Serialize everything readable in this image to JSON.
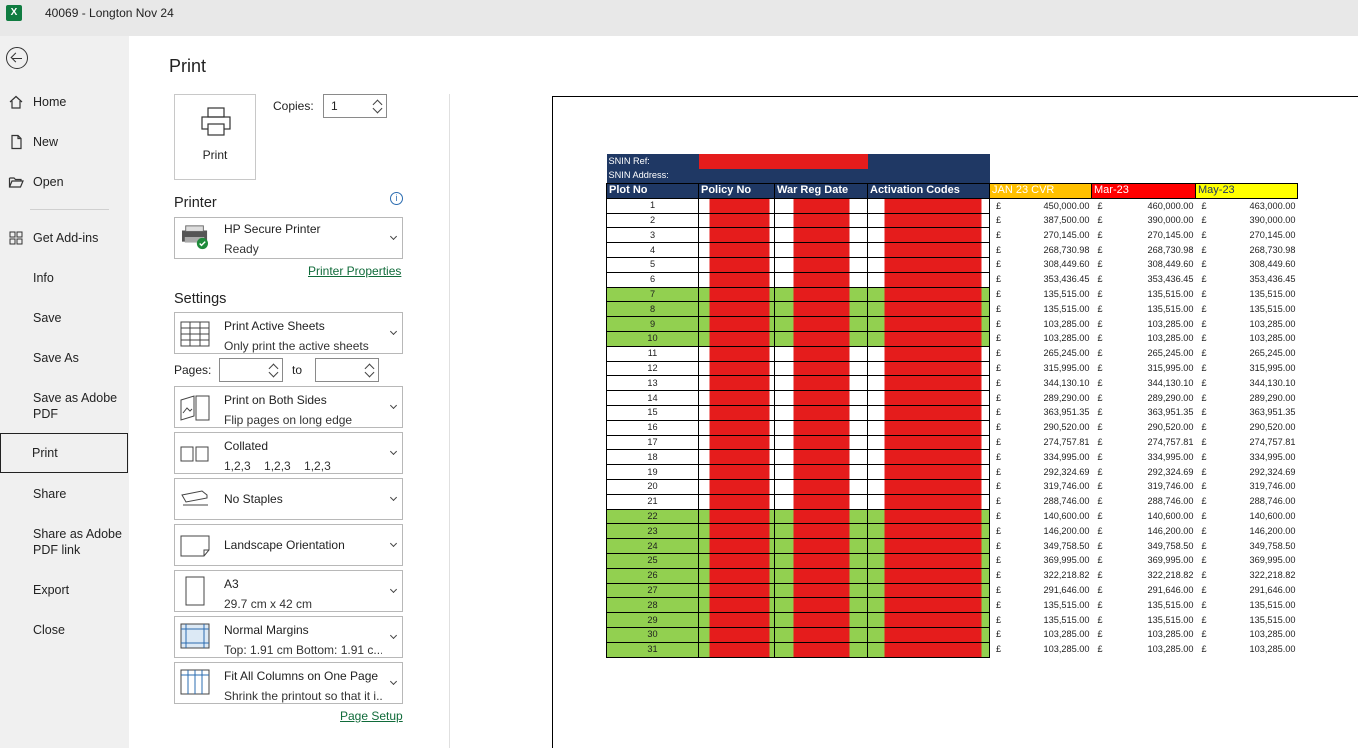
{
  "window": {
    "title": "40069 - Longton Nov 24",
    "app_icon": "excel-icon"
  },
  "nav": {
    "items": [
      {
        "label": "Home",
        "icon": "home-icon"
      },
      {
        "label": "New",
        "icon": "new-file-icon"
      },
      {
        "label": "Open",
        "icon": "open-folder-icon"
      },
      {
        "label": "Get Add-ins",
        "icon": "add-ins-icon"
      },
      {
        "label": "Info"
      },
      {
        "label": "Save"
      },
      {
        "label": "Save As"
      },
      {
        "label": "Save as Adobe PDF"
      },
      {
        "label": "Print",
        "selected": true
      },
      {
        "label": "Share"
      },
      {
        "label": "Share as Adobe PDF link"
      },
      {
        "label": "Export"
      },
      {
        "label": "Close"
      }
    ]
  },
  "print": {
    "heading": "Print",
    "button_label": "Print",
    "copies_label": "Copies:",
    "copies_value": "1",
    "printer_heading": "Printer",
    "printer_name": "HP Secure Printer",
    "printer_status": "Ready",
    "printer_properties": "Printer Properties",
    "settings_heading": "Settings",
    "settings": [
      {
        "title": "Print Active Sheets",
        "subtitle": "Only print the active sheets"
      },
      {
        "title": "Print on Both Sides",
        "subtitle": "Flip pages on long edge"
      },
      {
        "title": "Collated",
        "subtitle": "1,2,3    1,2,3    1,2,3"
      },
      {
        "title": "No Staples"
      },
      {
        "title": "Landscape Orientation"
      },
      {
        "title": "A3",
        "subtitle": "29.7 cm x 42 cm"
      },
      {
        "title": "Normal Margins",
        "subtitle": "Top: 1.91 cm Bottom: 1.91 c..."
      },
      {
        "title": "Fit All Columns on One Page",
        "subtitle": "Shrink the printout so that it i..."
      }
    ],
    "pages_label": "Pages:",
    "to_label": "to",
    "page_setup": "Page Setup"
  },
  "sheet": {
    "snin_ref": "SNIN Ref:",
    "snin_address": "SNIN Address:",
    "headers": [
      "Plot No",
      "Policy No",
      "War Reg Date",
      "Activation Codes",
      "JAN 23 CVR",
      "Mar-23",
      "May-23"
    ],
    "header_colors": {
      "jan": "#ffc000",
      "mar": "#ff0000",
      "may": "#ffff00"
    },
    "currency": "£",
    "rows": [
      {
        "plot": "1",
        "v": [
          "450,000.00",
          "460,000.00",
          "463,000.00"
        ],
        "green": false
      },
      {
        "plot": "2",
        "v": [
          "387,500.00",
          "390,000.00",
          "390,000.00"
        ],
        "green": false
      },
      {
        "plot": "3",
        "v": [
          "270,145.00",
          "270,145.00",
          "270,145.00"
        ],
        "green": false
      },
      {
        "plot": "4",
        "v": [
          "268,730.98",
          "268,730.98",
          "268,730.98"
        ],
        "green": false
      },
      {
        "plot": "5",
        "v": [
          "308,449.60",
          "308,449.60",
          "308,449.60"
        ],
        "green": false
      },
      {
        "plot": "6",
        "v": [
          "353,436.45",
          "353,436.45",
          "353,436.45"
        ],
        "green": false
      },
      {
        "plot": "7",
        "v": [
          "135,515.00",
          "135,515.00",
          "135,515.00"
        ],
        "green": true
      },
      {
        "plot": "8",
        "v": [
          "135,515.00",
          "135,515.00",
          "135,515.00"
        ],
        "green": true
      },
      {
        "plot": "9",
        "v": [
          "103,285.00",
          "103,285.00",
          "103,285.00"
        ],
        "green": true
      },
      {
        "plot": "10",
        "v": [
          "103,285.00",
          "103,285.00",
          "103,285.00"
        ],
        "green": true
      },
      {
        "plot": "11",
        "v": [
          "265,245.00",
          "265,245.00",
          "265,245.00"
        ],
        "green": false
      },
      {
        "plot": "12",
        "v": [
          "315,995.00",
          "315,995.00",
          "315,995.00"
        ],
        "green": false
      },
      {
        "plot": "13",
        "v": [
          "344,130.10",
          "344,130.10",
          "344,130.10"
        ],
        "green": false
      },
      {
        "plot": "14",
        "v": [
          "289,290.00",
          "289,290.00",
          "289,290.00"
        ],
        "green": false
      },
      {
        "plot": "15",
        "v": [
          "363,951.35",
          "363,951.35",
          "363,951.35"
        ],
        "green": false
      },
      {
        "plot": "16",
        "v": [
          "290,520.00",
          "290,520.00",
          "290,520.00"
        ],
        "green": false
      },
      {
        "plot": "17",
        "v": [
          "274,757.81",
          "274,757.81",
          "274,757.81"
        ],
        "green": false
      },
      {
        "plot": "18",
        "v": [
          "334,995.00",
          "334,995.00",
          "334,995.00"
        ],
        "green": false
      },
      {
        "plot": "19",
        "v": [
          "292,324.69",
          "292,324.69",
          "292,324.69"
        ],
        "green": false
      },
      {
        "plot": "20",
        "v": [
          "319,746.00",
          "319,746.00",
          "319,746.00"
        ],
        "green": false
      },
      {
        "plot": "21",
        "v": [
          "288,746.00",
          "288,746.00",
          "288,746.00"
        ],
        "green": false
      },
      {
        "plot": "22",
        "v": [
          "140,600.00",
          "140,600.00",
          "140,600.00"
        ],
        "green": true
      },
      {
        "plot": "23",
        "v": [
          "146,200.00",
          "146,200.00",
          "146,200.00"
        ],
        "green": true
      },
      {
        "plot": "24",
        "v": [
          "349,758.50",
          "349,758.50",
          "349,758.50"
        ],
        "green": true
      },
      {
        "plot": "25",
        "v": [
          "369,995.00",
          "369,995.00",
          "369,995.00"
        ],
        "green": true
      },
      {
        "plot": "26",
        "v": [
          "322,218.82",
          "322,218.82",
          "322,218.82"
        ],
        "green": true
      },
      {
        "plot": "27",
        "v": [
          "291,646.00",
          "291,646.00",
          "291,646.00"
        ],
        "green": true
      },
      {
        "plot": "28",
        "v": [
          "135,515.00",
          "135,515.00",
          "135,515.00"
        ],
        "green": true
      },
      {
        "plot": "29",
        "v": [
          "135,515.00",
          "135,515.00",
          "135,515.00"
        ],
        "green": true
      },
      {
        "plot": "30",
        "v": [
          "103,285.00",
          "103,285.00",
          "103,285.00"
        ],
        "green": true
      },
      {
        "plot": "31",
        "v": [
          "103,285.00",
          "103,285.00",
          "103,285.00"
        ],
        "green": true
      }
    ]
  }
}
